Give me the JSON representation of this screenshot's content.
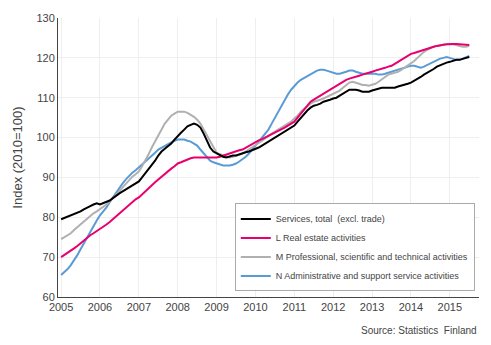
{
  "chart_data": {
    "type": "line",
    "ylabel": "Index (2010=100)",
    "annotations": [
      {
        "text": "Source: Statistics  Finland"
      }
    ],
    "ylim": [
      60,
      130
    ],
    "yticks": [
      60,
      70,
      80,
      90,
      100,
      110,
      120,
      130
    ],
    "xlim": [
      2004.92,
      2015.75
    ],
    "xticks": [
      2005,
      2006,
      2007,
      2008,
      2009,
      2010,
      2011,
      2012,
      2013,
      2014,
      2015
    ],
    "grid": true,
    "legend": "lower right",
    "x": [
      2005.0,
      2005.083,
      2005.167,
      2005.25,
      2005.333,
      2005.417,
      2005.5,
      2005.583,
      2005.667,
      2005.75,
      2005.833,
      2005.917,
      2006.0,
      2006.083,
      2006.167,
      2006.25,
      2006.333,
      2006.417,
      2006.5,
      2006.583,
      2006.667,
      2006.75,
      2006.833,
      2006.917,
      2007.0,
      2007.083,
      2007.167,
      2007.25,
      2007.333,
      2007.417,
      2007.5,
      2007.583,
      2007.667,
      2007.75,
      2007.833,
      2007.917,
      2008.0,
      2008.083,
      2008.167,
      2008.25,
      2008.333,
      2008.417,
      2008.5,
      2008.583,
      2008.667,
      2008.75,
      2008.833,
      2008.917,
      2009.0,
      2009.083,
      2009.167,
      2009.25,
      2009.333,
      2009.417,
      2009.5,
      2009.583,
      2009.667,
      2009.75,
      2009.833,
      2009.917,
      2010.0,
      2010.083,
      2010.167,
      2010.25,
      2010.333,
      2010.417,
      2010.5,
      2010.583,
      2010.667,
      2010.75,
      2010.833,
      2010.917,
      2011.0,
      2011.083,
      2011.167,
      2011.25,
      2011.333,
      2011.417,
      2011.5,
      2011.583,
      2011.667,
      2011.75,
      2011.833,
      2011.917,
      2012.0,
      2012.083,
      2012.167,
      2012.25,
      2012.333,
      2012.417,
      2012.5,
      2012.583,
      2012.667,
      2012.75,
      2012.833,
      2012.917,
      2013.0,
      2013.083,
      2013.167,
      2013.25,
      2013.333,
      2013.417,
      2013.5,
      2013.583,
      2013.667,
      2013.75,
      2013.833,
      2013.917,
      2014.0,
      2014.083,
      2014.167,
      2014.25,
      2014.333,
      2014.417,
      2014.5,
      2014.583,
      2014.667,
      2014.75,
      2014.833,
      2014.917,
      2015.0,
      2015.083,
      2015.167,
      2015.25,
      2015.333,
      2015.417,
      2015.5
    ],
    "series": [
      {
        "name": "Services, total  (excl. trade)",
        "color": "#000000",
        "values": [
          79.5,
          79.8,
          80.2,
          80.5,
          80.8,
          81.2,
          81.5,
          82.0,
          82.5,
          82.8,
          83.2,
          83.5,
          83.2,
          83.5,
          83.8,
          84.2,
          84.8,
          85.5,
          86.0,
          86.5,
          87.0,
          87.5,
          88.0,
          88.5,
          89.0,
          90.0,
          91.0,
          92.0,
          93.0,
          94.2,
          95.5,
          96.5,
          97.2,
          97.8,
          98.5,
          99.5,
          100.5,
          101.2,
          102.0,
          102.8,
          103.2,
          103.5,
          103.2,
          102.5,
          101.0,
          99.0,
          97.5,
          96.5,
          96.0,
          95.5,
          95.2,
          95.0,
          95.2,
          95.5,
          95.5,
          95.8,
          96.0,
          96.3,
          96.5,
          96.8,
          97.2,
          97.5,
          98.0,
          98.5,
          99.0,
          99.5,
          100.0,
          100.5,
          101.0,
          101.5,
          102.0,
          102.5,
          103.0,
          104.0,
          105.0,
          106.0,
          106.8,
          107.5,
          108.0,
          108.2,
          108.5,
          109.0,
          109.2,
          109.5,
          109.8,
          110.0,
          110.5,
          111.0,
          111.5,
          112.0,
          112.0,
          112.0,
          111.8,
          111.5,
          111.5,
          111.5,
          111.8,
          112.0,
          112.2,
          112.5,
          112.5,
          112.5,
          112.5,
          112.5,
          112.8,
          113.0,
          113.2,
          113.5,
          113.8,
          114.2,
          114.8,
          115.2,
          115.8,
          116.2,
          116.8,
          117.2,
          117.8,
          118.2,
          118.5,
          118.8,
          119.0,
          119.2,
          119.5,
          119.5,
          119.8,
          120.0,
          120.2
        ]
      },
      {
        "name": "L Real estate activities",
        "color": "#e8006f",
        "values": [
          70.0,
          70.5,
          71.0,
          71.5,
          72.2,
          72.8,
          73.5,
          74.2,
          74.8,
          75.5,
          76.0,
          76.5,
          77.0,
          77.5,
          78.2,
          78.8,
          79.5,
          80.2,
          81.0,
          81.8,
          82.5,
          83.2,
          83.8,
          84.5,
          85.0,
          85.8,
          86.5,
          87.2,
          88.0,
          88.8,
          89.5,
          90.2,
          91.0,
          91.5,
          92.2,
          92.8,
          93.5,
          93.8,
          94.2,
          94.5,
          94.8,
          95.0,
          95.0,
          95.0,
          95.0,
          95.0,
          95.0,
          95.0,
          95.0,
          95.2,
          95.5,
          95.8,
          96.0,
          96.2,
          96.5,
          96.8,
          97.0,
          97.5,
          98.0,
          98.5,
          99.0,
          99.3,
          99.6,
          100.0,
          100.4,
          100.8,
          101.2,
          101.5,
          102.0,
          102.5,
          103.0,
          103.5,
          104.0,
          105.0,
          106.0,
          107.0,
          108.0,
          109.0,
          109.5,
          110.0,
          110.5,
          111.0,
          111.5,
          112.0,
          112.5,
          113.0,
          113.5,
          114.0,
          114.5,
          114.8,
          115.0,
          115.2,
          115.5,
          115.8,
          116.0,
          116.2,
          116.5,
          116.8,
          117.0,
          117.2,
          117.5,
          117.8,
          118.0,
          118.5,
          119.0,
          119.5,
          120.0,
          120.5,
          121.0,
          121.2,
          121.5,
          121.8,
          122.0,
          122.2,
          122.5,
          122.8,
          123.0,
          123.2,
          123.3,
          123.4,
          123.5,
          123.5,
          123.5,
          123.4,
          123.3,
          123.2,
          123.2
        ]
      },
      {
        "name": "M Professional, scientific and technical activities",
        "color": "#b0b0b0",
        "values": [
          74.5,
          75.0,
          75.5,
          76.0,
          76.8,
          77.5,
          78.2,
          79.0,
          79.8,
          80.5,
          81.0,
          81.5,
          82.0,
          82.5,
          83.2,
          84.0,
          84.8,
          85.5,
          86.5,
          87.5,
          88.5,
          89.5,
          90.2,
          90.8,
          91.5,
          92.8,
          94.2,
          95.8,
          97.5,
          99.0,
          100.5,
          102.0,
          103.5,
          104.5,
          105.5,
          106.0,
          106.5,
          106.5,
          106.5,
          106.2,
          105.8,
          105.2,
          104.5,
          103.5,
          102.0,
          100.5,
          99.0,
          97.5,
          96.2,
          95.8,
          95.5,
          95.2,
          95.0,
          95.2,
          95.5,
          95.8,
          96.0,
          96.5,
          97.0,
          97.5,
          98.0,
          98.5,
          99.2,
          99.8,
          100.5,
          101.0,
          101.5,
          102.0,
          102.5,
          103.0,
          103.5,
          104.0,
          104.8,
          105.5,
          106.5,
          107.2,
          108.0,
          108.5,
          109.0,
          109.2,
          109.5,
          109.8,
          110.2,
          110.5,
          110.8,
          111.2,
          111.8,
          112.5,
          113.2,
          113.8,
          114.0,
          113.8,
          113.5,
          113.2,
          113.2,
          113.0,
          113.2,
          113.5,
          114.0,
          114.5,
          115.2,
          115.8,
          116.0,
          116.2,
          116.5,
          117.0,
          117.5,
          118.0,
          118.5,
          119.2,
          120.0,
          120.8,
          121.5,
          122.0,
          122.5,
          122.8,
          123.0,
          123.2,
          123.3,
          123.4,
          123.5,
          123.4,
          123.2,
          123.0,
          122.8,
          122.8,
          123.0
        ]
      },
      {
        "name": "N Administrative and support service activities",
        "color": "#5b9bd5",
        "values": [
          65.5,
          66.2,
          67.0,
          68.0,
          69.2,
          70.5,
          72.0,
          73.5,
          75.0,
          76.5,
          78.0,
          79.2,
          80.5,
          81.5,
          82.5,
          83.8,
          85.0,
          86.2,
          87.5,
          88.5,
          89.5,
          90.5,
          91.2,
          91.8,
          92.5,
          93.2,
          94.0,
          94.8,
          95.5,
          96.2,
          97.0,
          97.5,
          98.0,
          98.5,
          98.8,
          99.2,
          99.5,
          99.5,
          99.5,
          99.2,
          99.0,
          98.5,
          98.0,
          97.0,
          96.0,
          95.0,
          94.2,
          93.8,
          93.5,
          93.2,
          93.0,
          93.0,
          93.0,
          93.2,
          93.5,
          94.0,
          94.5,
          95.2,
          96.0,
          97.0,
          98.0,
          99.0,
          100.0,
          101.0,
          102.0,
          103.5,
          105.0,
          106.5,
          108.0,
          109.5,
          110.8,
          112.0,
          113.0,
          113.8,
          114.5,
          115.0,
          115.5,
          116.0,
          116.5,
          116.8,
          117.0,
          117.0,
          116.8,
          116.5,
          116.2,
          116.0,
          116.0,
          116.2,
          116.5,
          116.8,
          116.8,
          116.5,
          116.2,
          116.0,
          116.0,
          116.0,
          116.0,
          116.0,
          115.8,
          115.8,
          116.0,
          116.2,
          116.5,
          116.8,
          117.0,
          117.2,
          117.5,
          117.8,
          118.0,
          118.0,
          117.8,
          117.5,
          117.8,
          118.2,
          118.8,
          119.2,
          119.5,
          119.8,
          120.0,
          120.2,
          120.0,
          119.8,
          119.5,
          119.5,
          119.8,
          120.2,
          120.5
        ]
      }
    ]
  }
}
